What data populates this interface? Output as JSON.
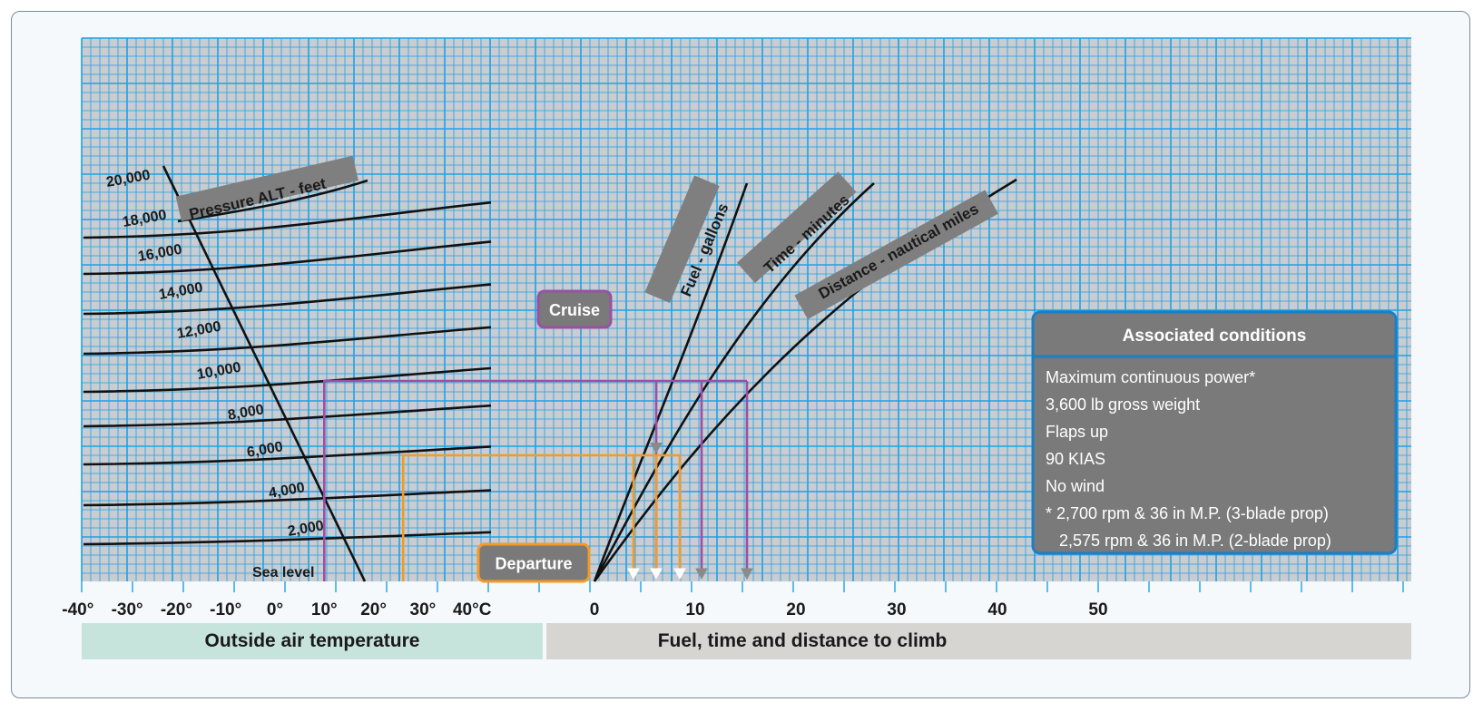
{
  "chart_data": {
    "type": "line",
    "title": "",
    "left_panel": {
      "xlabel": "Outside air temperature",
      "x_ticks": [
        "-40°",
        "-30°",
        "-20°",
        "-10°",
        "0°",
        "10°",
        "20°",
        "30°",
        "40°C"
      ],
      "xlim": [
        -40,
        40
      ],
      "curve_label": "Pressure ALT - feet",
      "altitude_labels": [
        "Sea level",
        "2,000",
        "4,000",
        "6,000",
        "8,000",
        "10,000",
        "12,000",
        "14,000",
        "16,000",
        "18,000",
        "20,000"
      ]
    },
    "right_panel": {
      "xlabel": "Fuel, time and distance to climb",
      "x_ticks": [
        "0",
        "10",
        "20",
        "30",
        "40",
        "50"
      ],
      "xlim": [
        0,
        57
      ],
      "series": [
        {
          "name": "Fuel - gallons",
          "end_value": 15
        },
        {
          "name": "Time - minutes",
          "end_value": 27
        },
        {
          "name": "Distance - nautical miles",
          "end_value": 41
        }
      ]
    },
    "examples": [
      {
        "name": "Cruise",
        "color": "#9b4fa5",
        "oat": 10,
        "fuel": 6,
        "time": 10.5,
        "distance": 15
      },
      {
        "name": "Departure",
        "color": "#f39a27",
        "oat": 26,
        "fuel": 3.7,
        "time": 6,
        "distance": 8.3
      }
    ],
    "grid": true
  },
  "conditions": {
    "title": "Associated conditions",
    "lines": [
      "Maximum continuous power*",
      "3,600 lb gross weight",
      "Flaps up",
      "90 KIAS",
      "No wind",
      "* 2,700 rpm & 36 in M.P. (3-blade prop)",
      "   2,575 rpm & 36 in M.P. (2-blade prop)"
    ]
  },
  "colors": {
    "grid_bg": "#c9ccd0",
    "grid_line": "#1aa3e8",
    "curve": "#111111",
    "label_band": "#7f7f7f",
    "footer_left": "#c6e3dc",
    "footer_right": "#d6d5d2",
    "box_fill": "#7a7a7a",
    "box_border": "#1b7fc4"
  }
}
